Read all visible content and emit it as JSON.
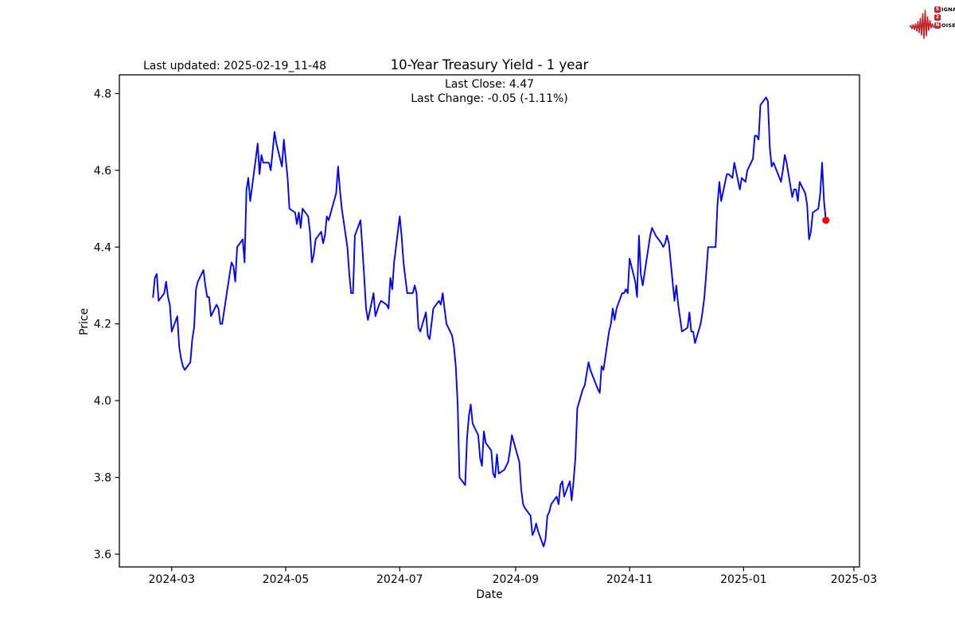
{
  "page": {
    "background": "#ffffff"
  },
  "header": {
    "last_updated": "Last updated: 2025-02-19_11-48",
    "logo": {
      "color": "#c0262c",
      "line1_box": "S",
      "line1_rest": "IGNAL",
      "line2_box": "2",
      "line3_box": "N",
      "line3_rest": "OISE"
    }
  },
  "chart_data": {
    "type": "line",
    "title": "10-Year Treasury Yield - 1 year",
    "subtitle_lines": [
      "Last Close: 4.47",
      "Last Change: -0.05 (-1.11%)"
    ],
    "xlabel": "Date",
    "ylabel": "Price",
    "grid": false,
    "legend": "none",
    "line_color": "#0000ff",
    "axis_color": "#000000",
    "xlim": [
      "2024-02-02",
      "2025-03-04"
    ],
    "ylim": [
      3.5668,
      4.8487
    ],
    "x_ticks": [
      {
        "date": "2024-03-01",
        "label": "2024-03"
      },
      {
        "date": "2024-05-01",
        "label": "2024-05"
      },
      {
        "date": "2024-07-01",
        "label": "2024-07"
      },
      {
        "date": "2024-09-01",
        "label": "2024-09"
      },
      {
        "date": "2024-11-01",
        "label": "2024-11"
      },
      {
        "date": "2025-01-01",
        "label": "2025-01"
      },
      {
        "date": "2025-03-01",
        "label": "2025-03"
      }
    ],
    "y_ticks": [
      {
        "value": 3.6,
        "label": "3.6"
      },
      {
        "value": 3.8,
        "label": "3.8"
      },
      {
        "value": 4.0,
        "label": "4.0"
      },
      {
        "value": 4.2,
        "label": "4.2"
      },
      {
        "value": 4.4,
        "label": "4.4"
      },
      {
        "value": 4.6,
        "label": "4.6"
      },
      {
        "value": 4.8,
        "label": "4.8"
      }
    ],
    "last_point_marker": {
      "shape": "circle",
      "color": "#ff0000",
      "date": "2025-02-14",
      "value": 4.47
    },
    "series": [
      {
        "name": "10-Year Treasury Yield",
        "dates": [
          "2024-02-20",
          "2024-02-21",
          "2024-02-22",
          "2024-02-23",
          "2024-02-26",
          "2024-02-27",
          "2024-02-28",
          "2024-02-29",
          "2024-03-01",
          "2024-03-04",
          "2024-03-05",
          "2024-03-06",
          "2024-03-07",
          "2024-03-08",
          "2024-03-11",
          "2024-03-12",
          "2024-03-13",
          "2024-03-14",
          "2024-03-15",
          "2024-03-18",
          "2024-03-19",
          "2024-03-20",
          "2024-03-21",
          "2024-03-22",
          "2024-03-25",
          "2024-03-26",
          "2024-03-27",
          "2024-03-28",
          "2024-04-01",
          "2024-04-02",
          "2024-04-03",
          "2024-04-04",
          "2024-04-05",
          "2024-04-08",
          "2024-04-09",
          "2024-04-10",
          "2024-04-11",
          "2024-04-12",
          "2024-04-15",
          "2024-04-16",
          "2024-04-17",
          "2024-04-18",
          "2024-04-19",
          "2024-04-22",
          "2024-04-23",
          "2024-04-24",
          "2024-04-25",
          "2024-04-26",
          "2024-04-29",
          "2024-04-30",
          "2024-05-01",
          "2024-05-02",
          "2024-05-03",
          "2024-05-06",
          "2024-05-07",
          "2024-05-08",
          "2024-05-09",
          "2024-05-10",
          "2024-05-13",
          "2024-05-14",
          "2024-05-15",
          "2024-05-16",
          "2024-05-17",
          "2024-05-20",
          "2024-05-21",
          "2024-05-22",
          "2024-05-23",
          "2024-05-24",
          "2024-05-28",
          "2024-05-29",
          "2024-05-30",
          "2024-05-31",
          "2024-06-03",
          "2024-06-04",
          "2024-06-05",
          "2024-06-06",
          "2024-06-07",
          "2024-06-10",
          "2024-06-11",
          "2024-06-12",
          "2024-06-13",
          "2024-06-14",
          "2024-06-17",
          "2024-06-18",
          "2024-06-20",
          "2024-06-21",
          "2024-06-24",
          "2024-06-25",
          "2024-06-26",
          "2024-06-27",
          "2024-06-28",
          "2024-07-01",
          "2024-07-02",
          "2024-07-03",
          "2024-07-05",
          "2024-07-08",
          "2024-07-09",
          "2024-07-10",
          "2024-07-11",
          "2024-07-12",
          "2024-07-15",
          "2024-07-16",
          "2024-07-17",
          "2024-07-18",
          "2024-07-19",
          "2024-07-22",
          "2024-07-23",
          "2024-07-24",
          "2024-07-25",
          "2024-07-26",
          "2024-07-29",
          "2024-07-30",
          "2024-07-31",
          "2024-08-01",
          "2024-08-02",
          "2024-08-05",
          "2024-08-06",
          "2024-08-07",
          "2024-08-08",
          "2024-08-09",
          "2024-08-12",
          "2024-08-13",
          "2024-08-14",
          "2024-08-15",
          "2024-08-16",
          "2024-08-19",
          "2024-08-20",
          "2024-08-21",
          "2024-08-22",
          "2024-08-23",
          "2024-08-26",
          "2024-08-27",
          "2024-08-28",
          "2024-08-29",
          "2024-08-30",
          "2024-09-03",
          "2024-09-04",
          "2024-09-05",
          "2024-09-06",
          "2024-09-09",
          "2024-09-10",
          "2024-09-11",
          "2024-09-12",
          "2024-09-13",
          "2024-09-16",
          "2024-09-17",
          "2024-09-18",
          "2024-09-19",
          "2024-09-20",
          "2024-09-23",
          "2024-09-24",
          "2024-09-25",
          "2024-09-26",
          "2024-09-27",
          "2024-09-30",
          "2024-10-01",
          "2024-10-02",
          "2024-10-03",
          "2024-10-04",
          "2024-10-07",
          "2024-10-08",
          "2024-10-09",
          "2024-10-10",
          "2024-10-11",
          "2024-10-15",
          "2024-10-16",
          "2024-10-17",
          "2024-10-18",
          "2024-10-21",
          "2024-10-22",
          "2024-10-23",
          "2024-10-24",
          "2024-10-25",
          "2024-10-28",
          "2024-10-29",
          "2024-10-30",
          "2024-10-31",
          "2024-11-01",
          "2024-11-04",
          "2024-11-05",
          "2024-11-06",
          "2024-11-07",
          "2024-11-08",
          "2024-11-12",
          "2024-11-13",
          "2024-11-14",
          "2024-11-15",
          "2024-11-18",
          "2024-11-19",
          "2024-11-20",
          "2024-11-21",
          "2024-11-22",
          "2024-11-25",
          "2024-11-26",
          "2024-11-27",
          "2024-11-29",
          "2024-12-02",
          "2024-12-03",
          "2024-12-04",
          "2024-12-05",
          "2024-12-06",
          "2024-12-09",
          "2024-12-10",
          "2024-12-11",
          "2024-12-12",
          "2024-12-13",
          "2024-12-16",
          "2024-12-17",
          "2024-12-18",
          "2024-12-19",
          "2024-12-20",
          "2024-12-23",
          "2024-12-24",
          "2024-12-26",
          "2024-12-27",
          "2024-12-30",
          "2024-12-31",
          "2025-01-02",
          "2025-01-03",
          "2025-01-06",
          "2025-01-07",
          "2025-01-08",
          "2025-01-09",
          "2025-01-10",
          "2025-01-13",
          "2025-01-14",
          "2025-01-15",
          "2025-01-16",
          "2025-01-17",
          "2025-01-21",
          "2025-01-22",
          "2025-01-23",
          "2025-01-24",
          "2025-01-27",
          "2025-01-28",
          "2025-01-29",
          "2025-01-30",
          "2025-01-31",
          "2025-02-03",
          "2025-02-04",
          "2025-02-05",
          "2025-02-06",
          "2025-02-07",
          "2025-02-10",
          "2025-02-11",
          "2025-02-12",
          "2025-02-13",
          "2025-02-14"
        ],
        "values": [
          4.27,
          4.32,
          4.33,
          4.26,
          4.28,
          4.31,
          4.27,
          4.25,
          4.18,
          4.22,
          4.14,
          4.11,
          4.09,
          4.08,
          4.1,
          4.16,
          4.19,
          4.29,
          4.31,
          4.34,
          4.3,
          4.27,
          4.27,
          4.22,
          4.25,
          4.24,
          4.2,
          4.2,
          4.33,
          4.36,
          4.35,
          4.31,
          4.4,
          4.42,
          4.36,
          4.55,
          4.58,
          4.52,
          4.63,
          4.67,
          4.59,
          4.64,
          4.62,
          4.62,
          4.6,
          4.65,
          4.7,
          4.67,
          4.61,
          4.68,
          4.63,
          4.58,
          4.5,
          4.49,
          4.46,
          4.49,
          4.45,
          4.5,
          4.48,
          4.44,
          4.36,
          4.38,
          4.42,
          4.44,
          4.41,
          4.43,
          4.48,
          4.47,
          4.54,
          4.61,
          4.55,
          4.5,
          4.4,
          4.33,
          4.28,
          4.28,
          4.43,
          4.47,
          4.4,
          4.32,
          4.24,
          4.21,
          4.28,
          4.22,
          4.25,
          4.26,
          4.25,
          4.24,
          4.32,
          4.29,
          4.36,
          4.48,
          4.43,
          4.36,
          4.28,
          4.28,
          4.3,
          4.28,
          4.19,
          4.18,
          4.23,
          4.17,
          4.16,
          4.2,
          4.24,
          4.26,
          4.25,
          4.28,
          4.24,
          4.2,
          4.17,
          4.14,
          4.09,
          3.99,
          3.8,
          3.78,
          3.9,
          3.96,
          3.99,
          3.94,
          3.91,
          3.85,
          3.83,
          3.92,
          3.89,
          3.87,
          3.81,
          3.8,
          3.86,
          3.81,
          3.82,
          3.83,
          3.84,
          3.87,
          3.91,
          3.84,
          3.77,
          3.73,
          3.72,
          3.7,
          3.65,
          3.66,
          3.68,
          3.66,
          3.62,
          3.64,
          3.7,
          3.71,
          3.73,
          3.75,
          3.73,
          3.78,
          3.79,
          3.75,
          3.79,
          3.74,
          3.79,
          3.85,
          3.98,
          4.03,
          4.04,
          4.07,
          4.1,
          4.08,
          4.03,
          4.02,
          4.09,
          4.08,
          4.18,
          4.2,
          4.24,
          4.21,
          4.24,
          4.28,
          4.28,
          4.29,
          4.28,
          4.37,
          4.31,
          4.27,
          4.43,
          4.33,
          4.3,
          4.43,
          4.45,
          4.44,
          4.43,
          4.41,
          4.4,
          4.41,
          4.43,
          4.41,
          4.26,
          4.3,
          4.25,
          4.18,
          4.19,
          4.23,
          4.18,
          4.18,
          4.15,
          4.2,
          4.23,
          4.27,
          4.33,
          4.4,
          4.4,
          4.4,
          4.51,
          4.57,
          4.52,
          4.59,
          4.59,
          4.58,
          4.62,
          4.55,
          4.58,
          4.57,
          4.6,
          4.63,
          4.69,
          4.69,
          4.68,
          4.77,
          4.79,
          4.78,
          4.66,
          4.61,
          4.62,
          4.57,
          4.6,
          4.64,
          4.62,
          4.53,
          4.55,
          4.55,
          4.52,
          4.57,
          4.54,
          4.51,
          4.42,
          4.44,
          4.49,
          4.5,
          4.54,
          4.62,
          4.52,
          4.47
        ]
      }
    ]
  }
}
